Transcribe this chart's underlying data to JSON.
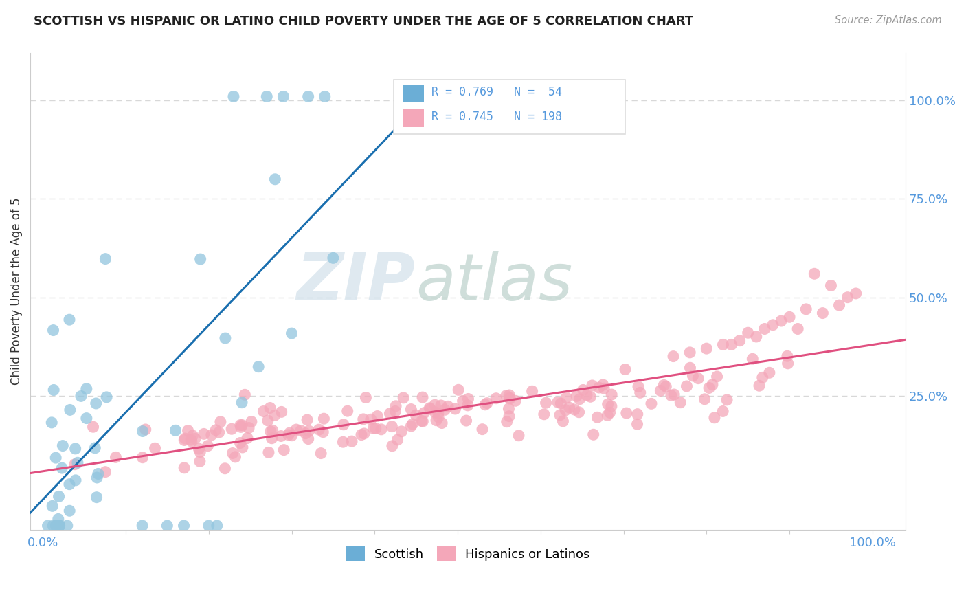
{
  "title": "SCOTTISH VS HISPANIC OR LATINO CHILD POVERTY UNDER THE AGE OF 5 CORRELATION CHART",
  "source": "Source: ZipAtlas.com",
  "ylabel": "Child Poverty Under the Age of 5",
  "legend_r1": "R = 0.769",
  "legend_n1": "N =  54",
  "legend_r2": "R = 0.745",
  "legend_n2": "N = 198",
  "scottish_color": "#92c5de",
  "scottish_edge": "#6baed6",
  "hispanic_color": "#f4a7b9",
  "hispanic_edge": "#e8829a",
  "scottish_line_color": "#1a6faf",
  "hispanic_line_color": "#e05080",
  "legend_blue_color": "#6baed6",
  "legend_pink_color": "#f4a7b9",
  "watermark_zip": "#c8d8e8",
  "watermark_atlas": "#b0c8c0",
  "background_color": "#ffffff",
  "title_fontsize": 13,
  "tick_color": "#5599dd",
  "grid_color": "#d8d8d8",
  "seed_scottish": 42,
  "seed_hispanic": 99,
  "n_scottish": 54,
  "n_hispanic": 198
}
